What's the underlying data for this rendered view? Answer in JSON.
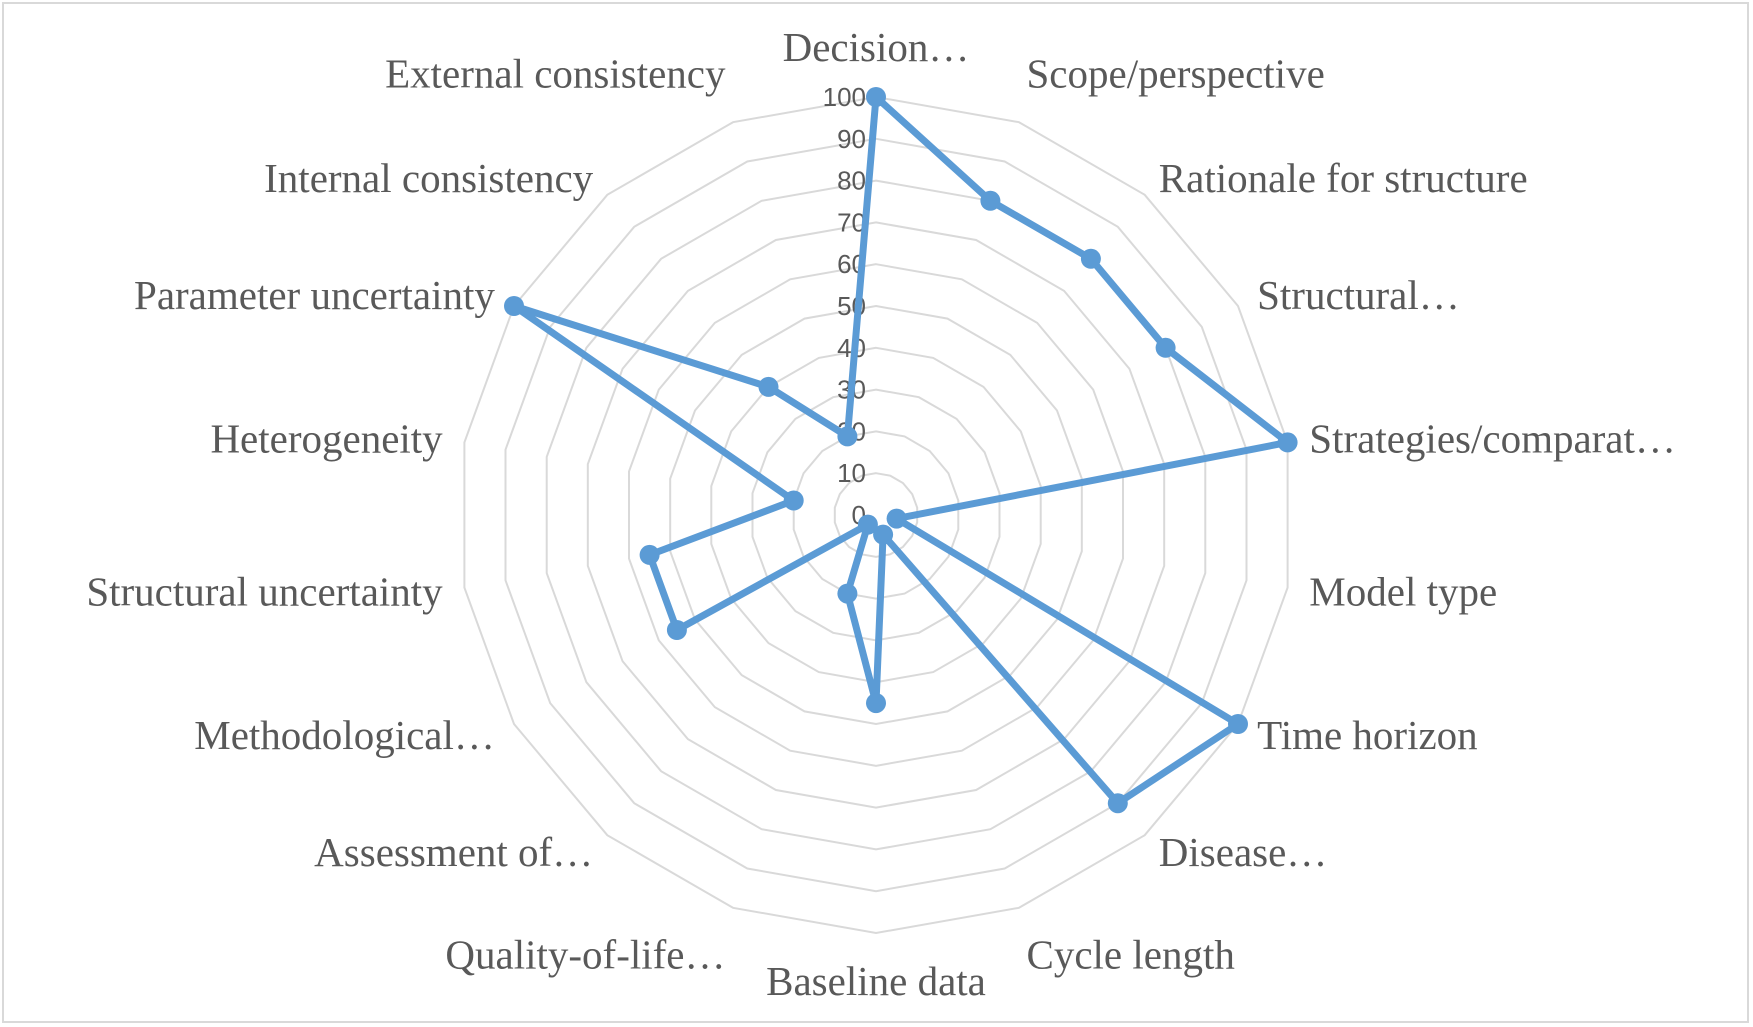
{
  "chart_data": {
    "type": "radar",
    "categories": [
      "Decision…",
      "Scope/perspective",
      "Rationale for structure",
      "Structural…",
      "Strategies/comparat…",
      "Model type",
      "Time horizon",
      "Disease…",
      "Cycle length",
      "Baseline data",
      "Quality-of-life…",
      "Assessment of…",
      "Methodological…",
      "Structural uncertainty",
      "Heterogeneity",
      "Parameter uncertainty",
      "Internal consistency",
      "External consistency"
    ],
    "series": [
      {
        "values": [
          100,
          80,
          80,
          80,
          100,
          5,
          100,
          90,
          5,
          45,
          20,
          3,
          55,
          55,
          20,
          100,
          40,
          20
        ]
      }
    ],
    "rlim": [
      0,
      100
    ],
    "ticks": [
      "0",
      "10",
      "20",
      "30",
      "40",
      "50",
      "60",
      "70",
      "80",
      "90",
      "100"
    ],
    "grid": true,
    "legend": "none",
    "colors": {
      "series": "#5b9bd5",
      "grid": "#d9d9d9",
      "text": "#595959"
    }
  }
}
